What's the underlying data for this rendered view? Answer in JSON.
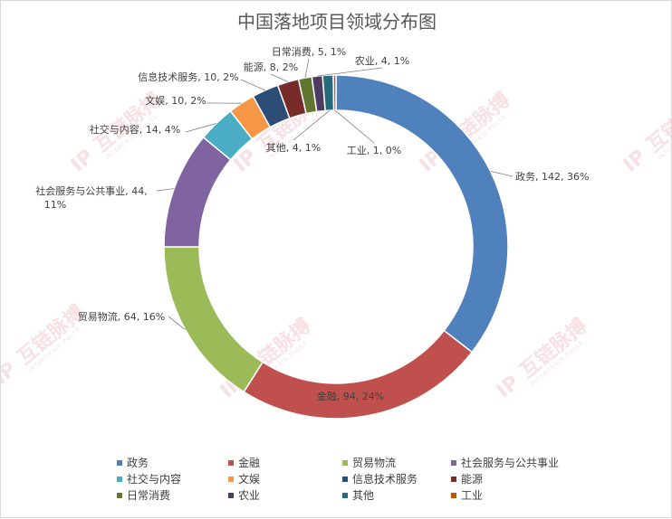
{
  "chart_data": {
    "type": "pie",
    "variant": "doughnut",
    "title": "中国落地项目领域分布图",
    "series": [
      {
        "name": "政务",
        "value": 142,
        "percent": "36%",
        "color": "#4f81bd"
      },
      {
        "name": "金融",
        "value": 94,
        "percent": "24%",
        "color": "#c0504d"
      },
      {
        "name": "贸易物流",
        "value": 64,
        "percent": "16%",
        "color": "#9bbb59"
      },
      {
        "name": "社会服务与公共事业",
        "value": 44,
        "percent": "11%",
        "color": "#8064a2"
      },
      {
        "name": "社交与内容",
        "value": 14,
        "percent": "4%",
        "color": "#4bacc6"
      },
      {
        "name": "文娱",
        "value": 10,
        "percent": "2%",
        "color": "#f79646"
      },
      {
        "name": "信息技术服务",
        "value": 10,
        "percent": "2%",
        "color": "#2c4d75"
      },
      {
        "name": "能源",
        "value": 8,
        "percent": "2%",
        "color": "#772c2a"
      },
      {
        "name": "日常消费",
        "value": 5,
        "percent": "1%",
        "color": "#5f7530"
      },
      {
        "name": "农业",
        "value": 4,
        "percent": "1%",
        "color": "#4d3b62"
      },
      {
        "name": "其他",
        "value": 4,
        "percent": "1%",
        "color": "#276a7c"
      },
      {
        "name": "工业",
        "value": 1,
        "percent": "0%",
        "color": "#b65708"
      }
    ],
    "legend_position": "bottom",
    "data_labels": [
      "政务, 142, 36%",
      "金融, 94, 24%",
      "贸易物流, 64, 16%",
      "社会服务与公共事业, 44, 11%",
      "社交与内容, 14, 4%",
      "文娱, 10, 2%",
      "信息技术服务, 10, 2%",
      "能源, 8, 2%",
      "日常消费, 5, 1%",
      "农业, 4, 1%",
      "其他, 4, 1%",
      "工业, 1, 0%"
    ]
  },
  "watermark": {
    "text": "互链脉搏",
    "subtext": "INTERCHAIN PULSE"
  }
}
